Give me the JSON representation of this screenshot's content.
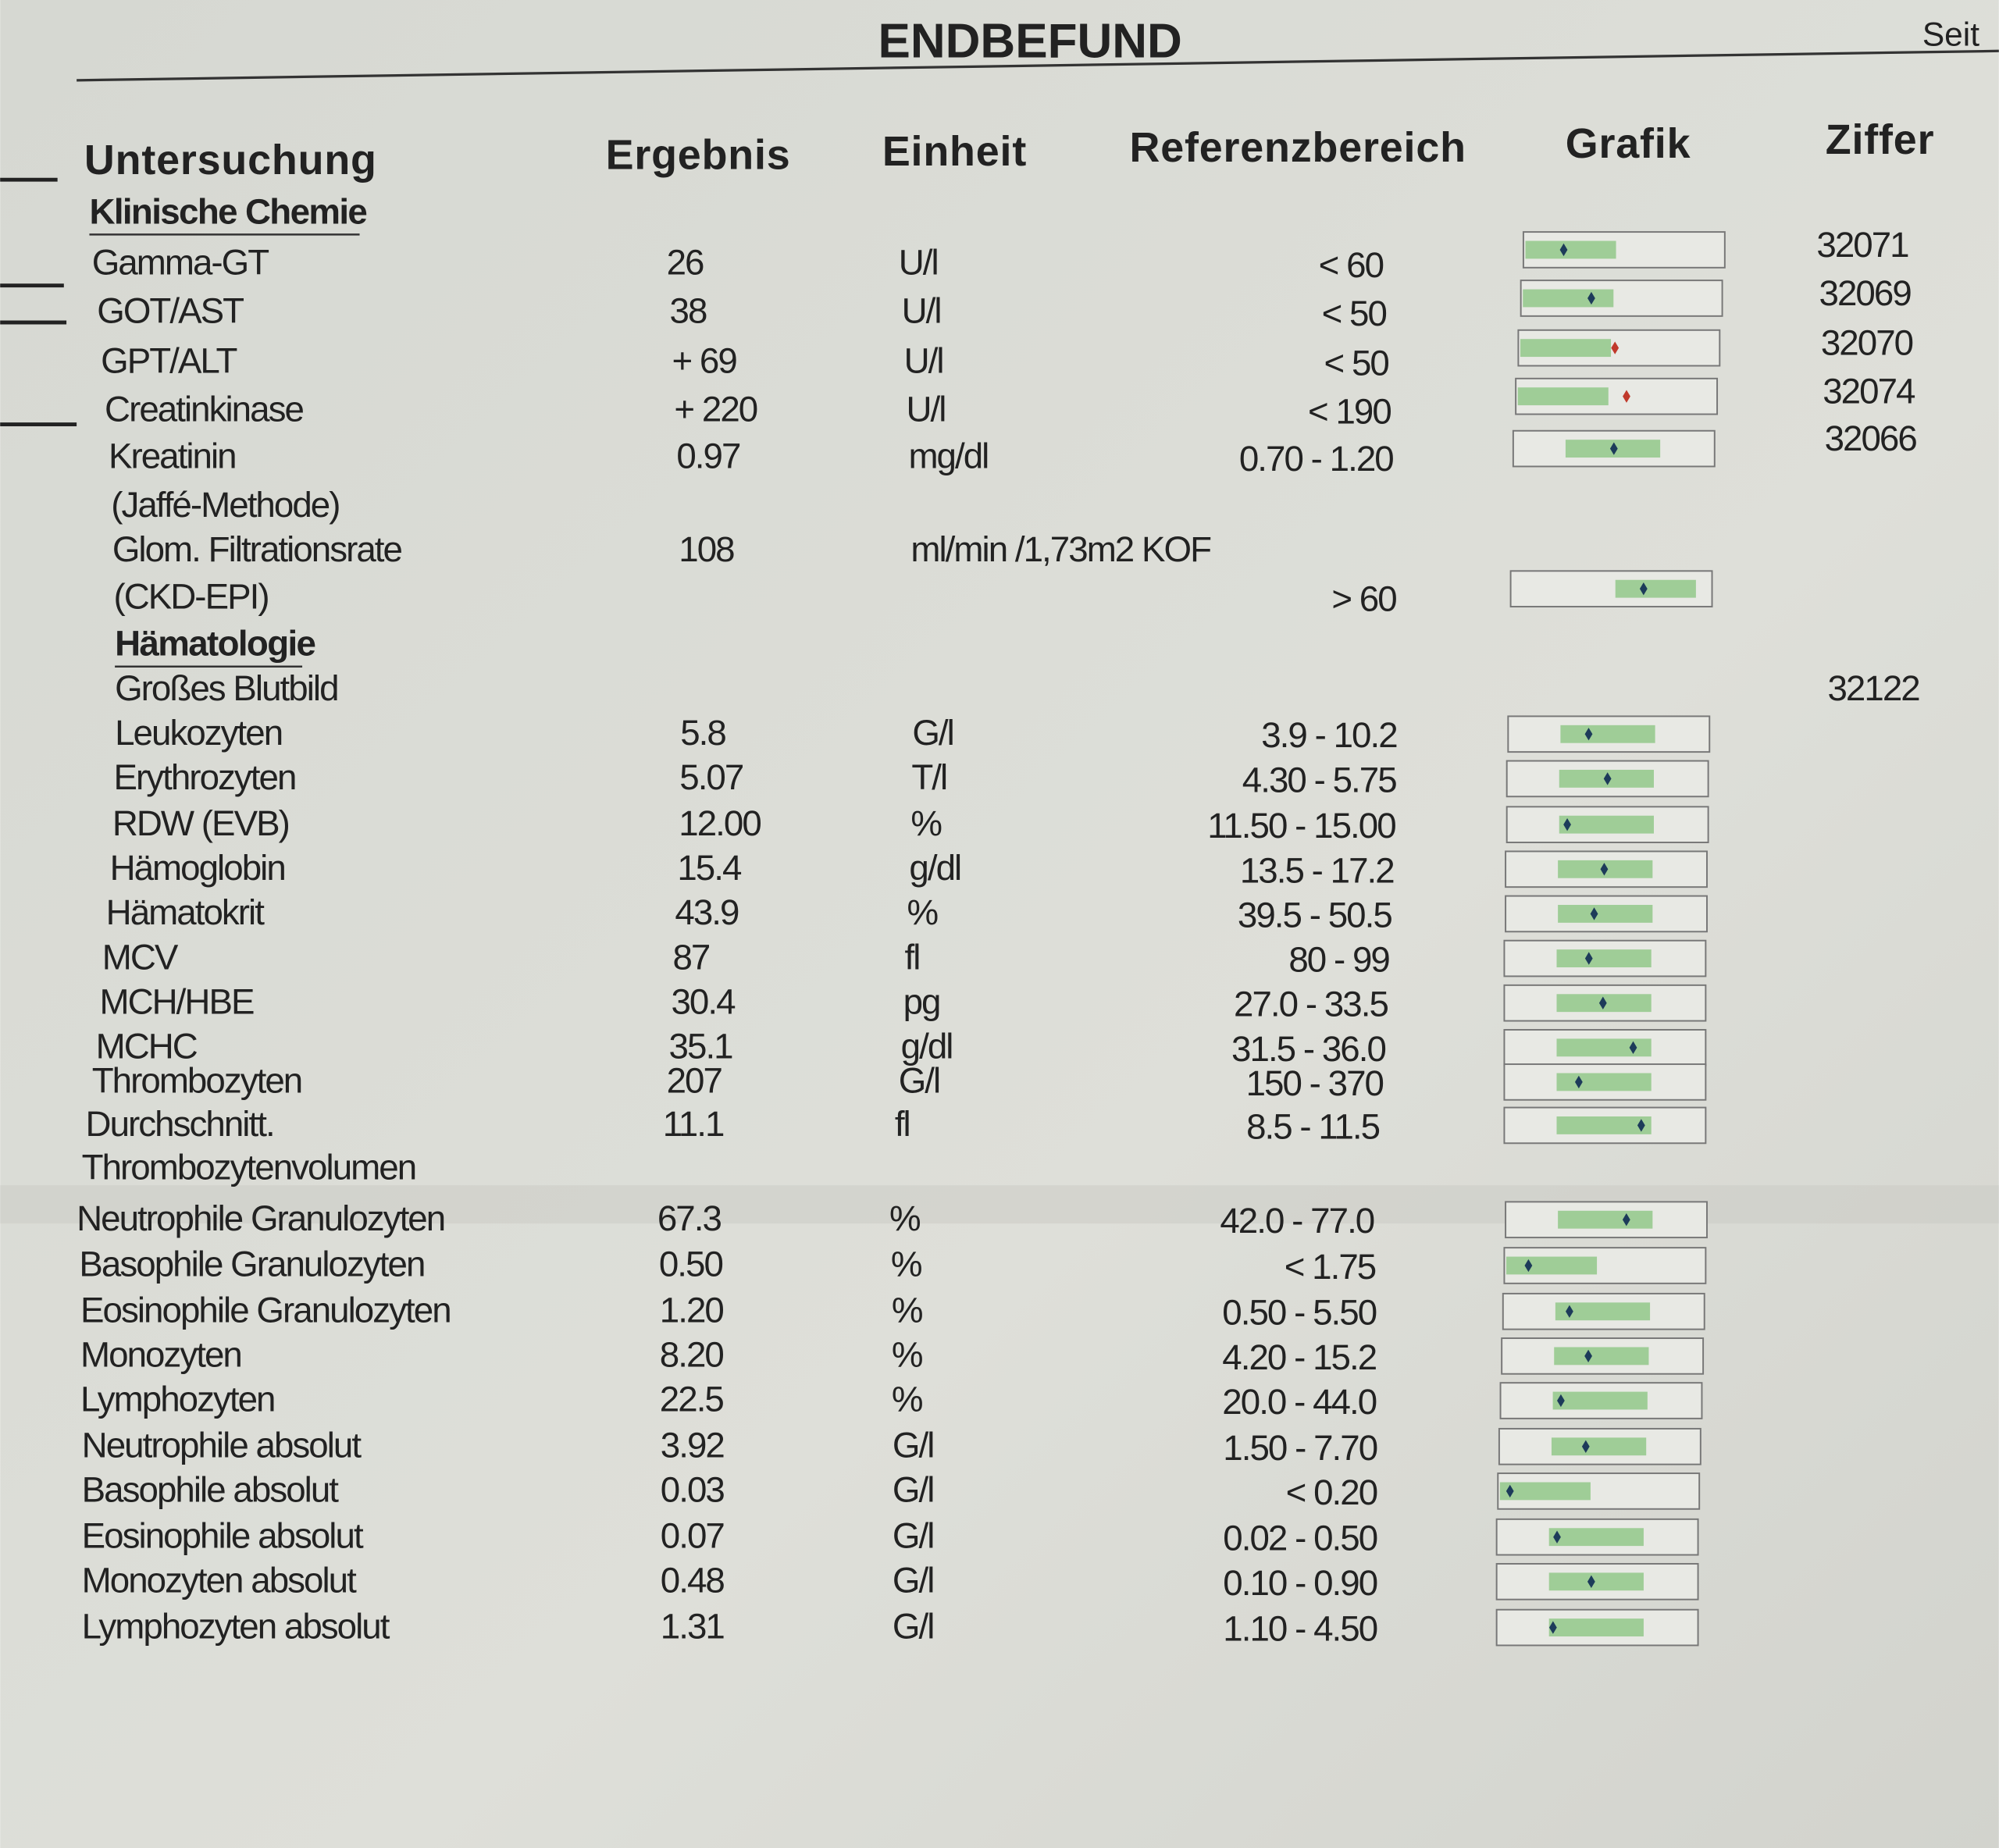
{
  "header": {
    "title": "ENDBEFUND",
    "page": "Seit"
  },
  "columns": [
    "Untersuchung",
    "Ergebnis",
    "Einheit",
    "Referenzbereich",
    "Grafik",
    "Ziffer"
  ],
  "sections": [
    {
      "title": "Klinische Chemie",
      "rows": [
        {
          "name": "Gamma-GT",
          "result": "26",
          "unit": "U/l",
          "reference": "< 60",
          "code": "32071"
        },
        {
          "name": "GOT/AST",
          "result": "38",
          "unit": "U/l",
          "reference": "< 50",
          "code": "32069"
        },
        {
          "name": "GPT/ALT",
          "result": "+ 69",
          "unit": "U/l",
          "reference": "< 50",
          "code": "32070"
        },
        {
          "name": "Creatinkinase",
          "result": "+ 220",
          "unit": "U/l",
          "reference": "< 190",
          "code": "32074"
        },
        {
          "name": "Kreatinin",
          "result": "0.97",
          "unit": "mg/dl",
          "reference": "0.70 - 1.20",
          "code": "32066"
        },
        {
          "name": "(Jaffé-Methode)"
        },
        {
          "name": "Glom. Filtrationsrate",
          "result": "108",
          "unit": "ml/min  /1,73m2 KOF"
        },
        {
          "name": "(CKD-EPI)",
          "reference": "> 60"
        }
      ]
    },
    {
      "title": "Hämatologie",
      "rows": [
        {
          "name": "Großes Blutbild",
          "code": "32122"
        },
        {
          "name": "Leukozyten",
          "result": "5.8",
          "unit": "G/l",
          "reference": "3.9 - 10.2"
        },
        {
          "name": "Erythrozyten",
          "result": "5.07",
          "unit": "T/l",
          "reference": "4.30 - 5.75"
        },
        {
          "name": "RDW (EVB)",
          "result": "12.00",
          "unit": "%",
          "reference": "11.50 - 15.00"
        },
        {
          "name": "Hämoglobin",
          "result": "15.4",
          "unit": "g/dl",
          "reference": "13.5 - 17.2"
        },
        {
          "name": "Hämatokrit",
          "result": "43.9",
          "unit": "%",
          "reference": "39.5 - 50.5"
        },
        {
          "name": "MCV",
          "result": "87",
          "unit": "fl",
          "reference": "80 - 99"
        },
        {
          "name": "MCH/HBE",
          "result": "30.4",
          "unit": "pg",
          "reference": "27.0 - 33.5"
        },
        {
          "name": "MCHC",
          "result": "35.1",
          "unit": "g/dl",
          "reference": "31.5 - 36.0"
        },
        {
          "name": "Thrombozyten",
          "result": "207",
          "unit": "G/l",
          "reference": "150 - 370"
        },
        {
          "name": "Durchschnitt.",
          "result": "11.1",
          "unit": "fl",
          "reference": "8.5 - 11.5"
        },
        {
          "name": "Thrombozytenvolumen"
        },
        {
          "name": "Neutrophile Granulozyten",
          "result": "67.3",
          "unit": "%",
          "reference": "42.0 - 77.0"
        },
        {
          "name": "Basophile Granulozyten",
          "result": "0.50",
          "unit": "%",
          "reference": "< 1.75"
        },
        {
          "name": "Eosinophile Granulozyten",
          "result": "1.20",
          "unit": "%",
          "reference": "0.50 - 5.50"
        },
        {
          "name": "Monozyten",
          "result": "8.20",
          "unit": "%",
          "reference": "4.20 - 15.2"
        },
        {
          "name": "Lymphozyten",
          "result": "22.5",
          "unit": "%",
          "reference": "20.0 - 44.0"
        },
        {
          "name": "Neutrophile absolut",
          "result": "3.92",
          "unit": "G/l",
          "reference": "1.50 - 7.70"
        },
        {
          "name": "Basophile absolut",
          "result": "0.03",
          "unit": "G/l",
          "reference": "< 0.20"
        },
        {
          "name": "Eosinophile absolut",
          "result": "0.07",
          "unit": "G/l",
          "reference": "0.02 - 0.50"
        },
        {
          "name": "Monozyten absolut",
          "result": "0.48",
          "unit": "G/l",
          "reference": "0.10 - 0.90"
        },
        {
          "name": "Lymphozyten absolut",
          "result": "1.31",
          "unit": "G/l",
          "reference": "1.10 - 4.50"
        }
      ]
    }
  ]
}
